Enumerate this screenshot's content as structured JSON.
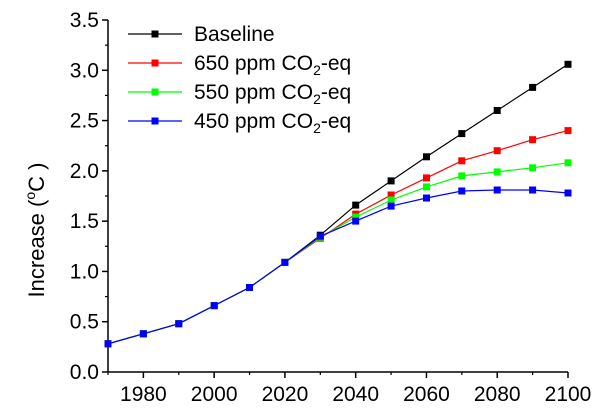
{
  "chart_data": {
    "type": "line",
    "title": "",
    "xlabel": "",
    "ylabel": "Increase (oC )",
    "ylabel_parts": {
      "prefix": "Increase (",
      "sup": "o",
      "suffix": "C )"
    },
    "xlim": [
      1970,
      2100
    ],
    "ylim": [
      0.0,
      3.5
    ],
    "x_ticks": [
      "1980",
      "2000",
      "2020",
      "2040",
      "2060",
      "2080",
      "2100"
    ],
    "y_ticks": [
      "0.0",
      "0.5",
      "1.0",
      "1.5",
      "2.0",
      "2.5",
      "3.0",
      "3.5"
    ],
    "grid": false,
    "legend_position": "top-left",
    "x": [
      1970,
      1980,
      1990,
      2000,
      2010,
      2020,
      2030,
      2040,
      2050,
      2060,
      2070,
      2080,
      2090,
      2100
    ],
    "series": [
      {
        "name": "Baseline",
        "label_parts": {
          "main": "Baseline",
          "sub": "",
          "after": ""
        },
        "color": "#000000",
        "values": [
          0.28,
          0.38,
          0.48,
          0.66,
          0.84,
          1.09,
          1.36,
          1.66,
          1.9,
          2.14,
          2.37,
          2.6,
          2.83,
          3.06
        ]
      },
      {
        "name": "650 ppm CO2-eq",
        "label_parts": {
          "main": "650 ppm CO",
          "sub": "2",
          "after": "-eq"
        },
        "color": "#ff0000",
        "values": [
          0.28,
          0.38,
          0.48,
          0.66,
          0.84,
          1.09,
          1.33,
          1.57,
          1.76,
          1.93,
          2.1,
          2.2,
          2.31,
          2.4
        ]
      },
      {
        "name": "550 ppm CO2-eq",
        "label_parts": {
          "main": "550 ppm CO",
          "sub": "2",
          "after": "-eq"
        },
        "color": "#00ff00",
        "values": [
          0.28,
          0.38,
          0.48,
          0.66,
          0.84,
          1.09,
          1.34,
          1.54,
          1.71,
          1.84,
          1.95,
          1.99,
          2.03,
          2.08
        ]
      },
      {
        "name": "450 ppm CO2-eq",
        "label_parts": {
          "main": "450 ppm CO",
          "sub": "2",
          "after": "-eq"
        },
        "color": "#0000ff",
        "values": [
          0.28,
          0.38,
          0.48,
          0.66,
          0.84,
          1.09,
          1.35,
          1.5,
          1.65,
          1.73,
          1.8,
          1.81,
          1.81,
          1.78
        ]
      }
    ]
  }
}
